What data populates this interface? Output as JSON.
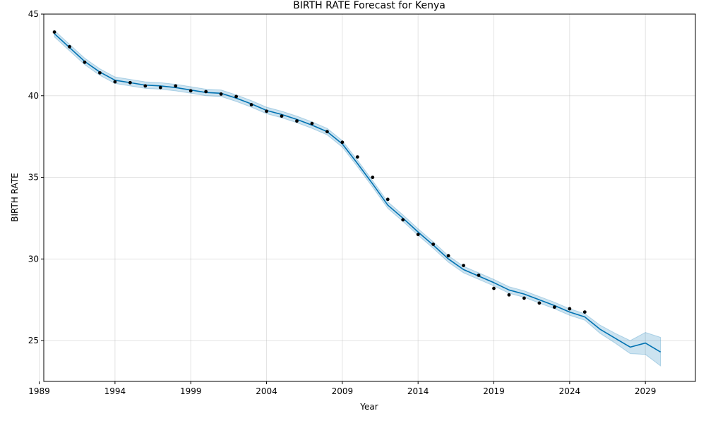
{
  "chart_data": {
    "type": "line",
    "title": "BIRTH RATE Forecast for Kenya",
    "xlabel": "Year",
    "ylabel": "BIRTH RATE",
    "xlim": [
      1989.3,
      2032.3
    ],
    "ylim": [
      22.5,
      45.0
    ],
    "x_ticks": [
      1989,
      1994,
      1999,
      2004,
      2009,
      2014,
      2019,
      2024,
      2029
    ],
    "y_ticks": [
      25,
      30,
      35,
      40,
      45
    ],
    "grid": true,
    "colors": {
      "forecast_line": "#0072B2",
      "uncertainty_band": "#0072B2",
      "observed_points": "#000000"
    },
    "series": [
      {
        "kind": "observed",
        "x": [
          1990,
          1991,
          1992,
          1993,
          1994,
          1995,
          1996,
          1997,
          1998,
          1999,
          2000,
          2001,
          2002,
          2003,
          2004,
          2005,
          2006,
          2007,
          2008,
          2009,
          2010,
          2011,
          2012,
          2013,
          2014,
          2015,
          2016,
          2017,
          2018,
          2019,
          2020,
          2021,
          2022,
          2023,
          2024,
          2025
        ],
        "values": [
          43.9,
          43.0,
          42.05,
          41.4,
          40.85,
          40.8,
          40.6,
          40.5,
          40.6,
          40.3,
          40.25,
          40.1,
          39.95,
          39.45,
          39.05,
          38.75,
          38.45,
          38.3,
          37.8,
          37.15,
          36.25,
          35.0,
          33.65,
          32.4,
          31.5,
          30.9,
          30.2,
          29.6,
          29.0,
          28.2,
          27.8,
          27.6,
          27.3,
          27.05,
          26.95,
          26.75
        ]
      },
      {
        "kind": "forecast",
        "x": [
          1990,
          1991,
          1992,
          1993,
          1994,
          1995,
          1996,
          1997,
          1998,
          1999,
          2000,
          2001,
          2002,
          2003,
          2004,
          2005,
          2006,
          2007,
          2008,
          2009,
          2010,
          2011,
          2012,
          2013,
          2014,
          2015,
          2016,
          2017,
          2018,
          2019,
          2020,
          2021,
          2022,
          2023,
          2024,
          2025,
          2026,
          2027,
          2028,
          2029,
          2030
        ],
        "values": [
          43.8,
          42.95,
          42.1,
          41.45,
          40.95,
          40.8,
          40.65,
          40.6,
          40.5,
          40.35,
          40.2,
          40.15,
          39.85,
          39.5,
          39.1,
          38.85,
          38.55,
          38.2,
          37.8,
          37.05,
          35.85,
          34.6,
          33.3,
          32.5,
          31.65,
          30.85,
          30.0,
          29.35,
          28.95,
          28.55,
          28.1,
          27.85,
          27.5,
          27.15,
          26.75,
          26.45,
          25.7,
          25.15,
          24.6,
          24.85,
          24.3
        ],
        "lower": [
          43.6,
          42.75,
          41.9,
          41.25,
          40.75,
          40.6,
          40.45,
          40.4,
          40.3,
          40.15,
          40.0,
          39.95,
          39.65,
          39.3,
          38.9,
          38.65,
          38.35,
          38.0,
          37.6,
          36.85,
          35.65,
          34.4,
          33.1,
          32.3,
          31.45,
          30.65,
          29.8,
          29.15,
          28.75,
          28.35,
          27.9,
          27.65,
          27.3,
          26.95,
          26.55,
          26.25,
          25.45,
          24.85,
          24.2,
          24.15,
          23.45
        ],
        "upper": [
          44.0,
          43.15,
          42.3,
          41.65,
          41.15,
          41.0,
          40.85,
          40.8,
          40.7,
          40.55,
          40.4,
          40.35,
          40.05,
          39.7,
          39.3,
          39.05,
          38.75,
          38.4,
          38.0,
          37.25,
          36.05,
          34.8,
          33.5,
          32.7,
          31.85,
          31.05,
          30.2,
          29.55,
          29.15,
          28.75,
          28.3,
          28.05,
          27.7,
          27.35,
          26.95,
          26.65,
          25.95,
          25.45,
          25.0,
          25.5,
          25.2
        ]
      }
    ]
  }
}
